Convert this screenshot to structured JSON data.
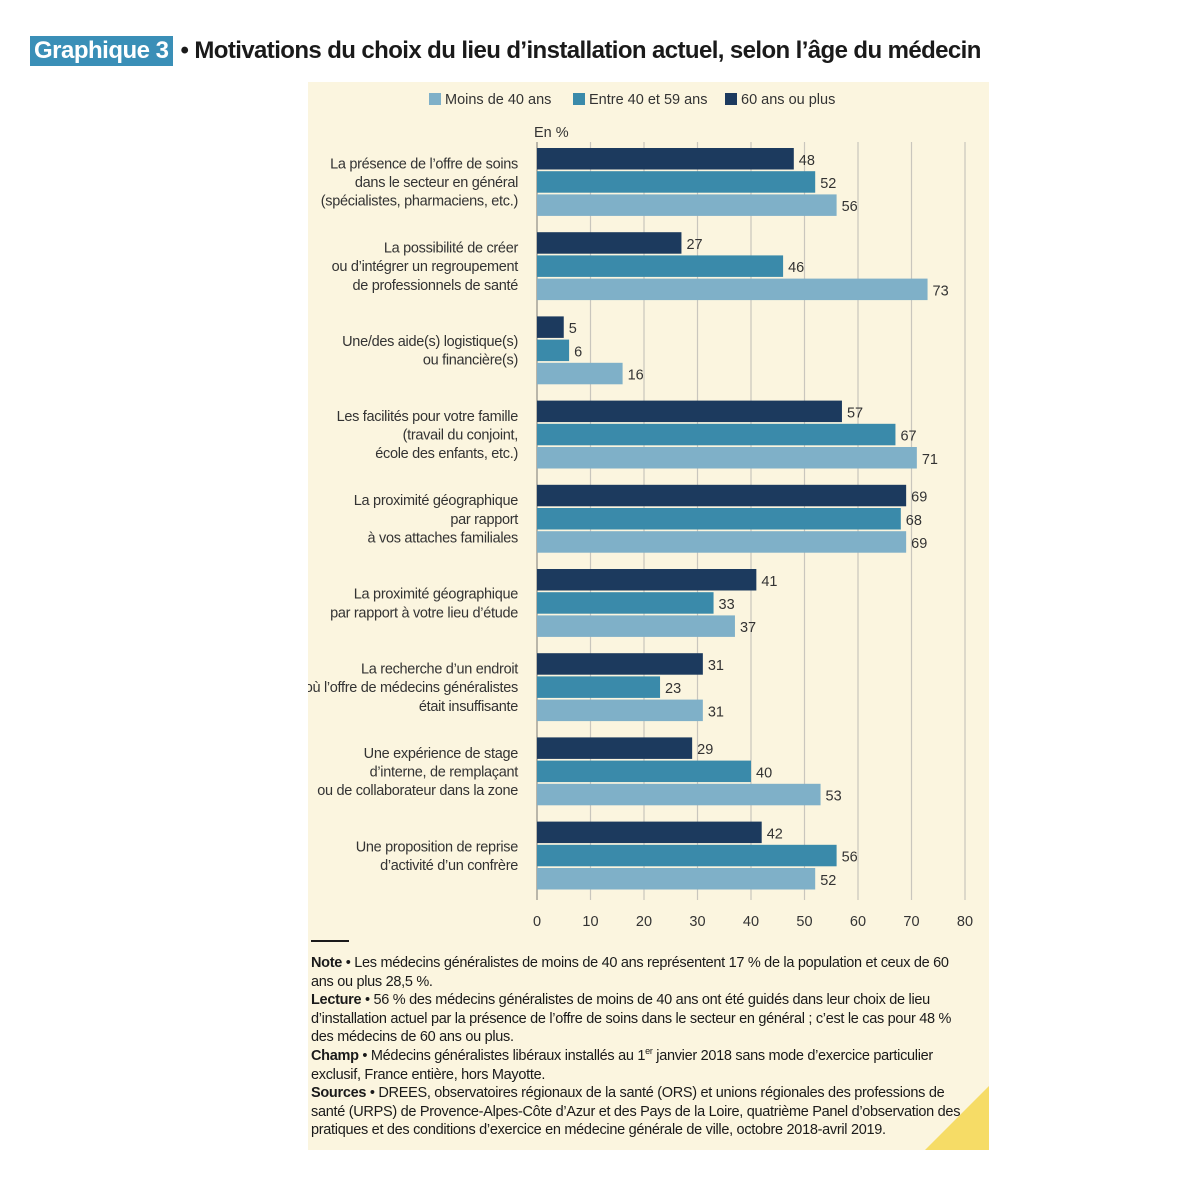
{
  "header": {
    "label": "Graphique 3",
    "title": "• Motivations du choix du lieu d’installation actuel, selon l’âge du médecin"
  },
  "colors": {
    "panel_bg": "#fbf5df",
    "label_bg": "#3a8fb7",
    "corner": "#f6dc66"
  },
  "chart_data": {
    "type": "bar",
    "orientation": "horizontal",
    "unit_label": "En %",
    "xlim": [
      0,
      80
    ],
    "xticks": [
      0,
      10,
      20,
      30,
      40,
      50,
      60,
      70,
      80
    ],
    "grid": true,
    "legend_position": "top",
    "categories": [
      [
        "La présence de l’offre de soins",
        "dans le secteur en général",
        "(spécialistes, pharmaciens, etc.)"
      ],
      [
        "La possibilité de créer",
        "ou d’intégrer un regroupement",
        "de professionnels de santé"
      ],
      [
        "Une/des aide(s) logistique(s)",
        "ou financière(s)"
      ],
      [
        "Les facilités pour votre famille",
        "(travail du conjoint,",
        "école des enfants, etc.)"
      ],
      [
        "La proximité géographique",
        "par rapport",
        "à vos attaches familiales"
      ],
      [
        "La proximité géographique",
        "par rapport à votre lieu d’étude"
      ],
      [
        "La recherche d’un endroit",
        "où l’offre de médecins généralistes",
        "était insuffisante"
      ],
      [
        "Une expérience de stage",
        "d’interne, de remplaçant",
        "ou de collaborateur dans la zone"
      ],
      [
        "Une proposition de reprise",
        "d’activité d’un confrère"
      ]
    ],
    "series": [
      {
        "name": "60 ans ou plus",
        "color": "#1c3a5e",
        "values": [
          48,
          27,
          5,
          57,
          69,
          41,
          31,
          29,
          42
        ]
      },
      {
        "name": "Entre 40 et 59 ans",
        "color": "#3a8aaa",
        "values": [
          52,
          46,
          6,
          67,
          68,
          33,
          23,
          40,
          56
        ]
      },
      {
        "name": "Moins de 40 ans",
        "color": "#7fb0c8",
        "values": [
          56,
          73,
          16,
          71,
          69,
          37,
          31,
          53,
          52
        ]
      }
    ],
    "legend_order": [
      "Moins de 40 ans",
      "Entre 40 et 59 ans",
      "60 ans ou plus"
    ]
  },
  "notes": {
    "note_label": "Note",
    "note_text": " • Les médecins généralistes de moins de 40 ans représentent 17 % de la population et ceux de 60 ans ou plus 28,5 %.",
    "lecture_label": "Lecture",
    "lecture_text": " • 56 % des médecins généralistes de moins de 40 ans ont été guidés dans leur choix de lieu d’installation actuel par la présence de l’offre de soins dans le secteur en général ; c’est le cas pour 48 % des médecins de 60 ans ou plus.",
    "champ_label": "Champ",
    "champ_text_1": " • Médecins généralistes libéraux installés au 1",
    "champ_sup": "er",
    "champ_text_2": " janvier 2018 sans mode d’exercice particulier exclusif, France entière, hors Mayotte.",
    "sources_label": "Sources",
    "sources_text": " • DREES, observatoires régionaux de la santé (ORS) et unions régionales des professions de santé (URPS) de Provence-Alpes-Côte d’Azur et des Pays de la Loire, quatrième Panel d’observation des pratiques et des conditions d’exercice en médecine générale de ville, octobre 2018-avril 2019."
  }
}
